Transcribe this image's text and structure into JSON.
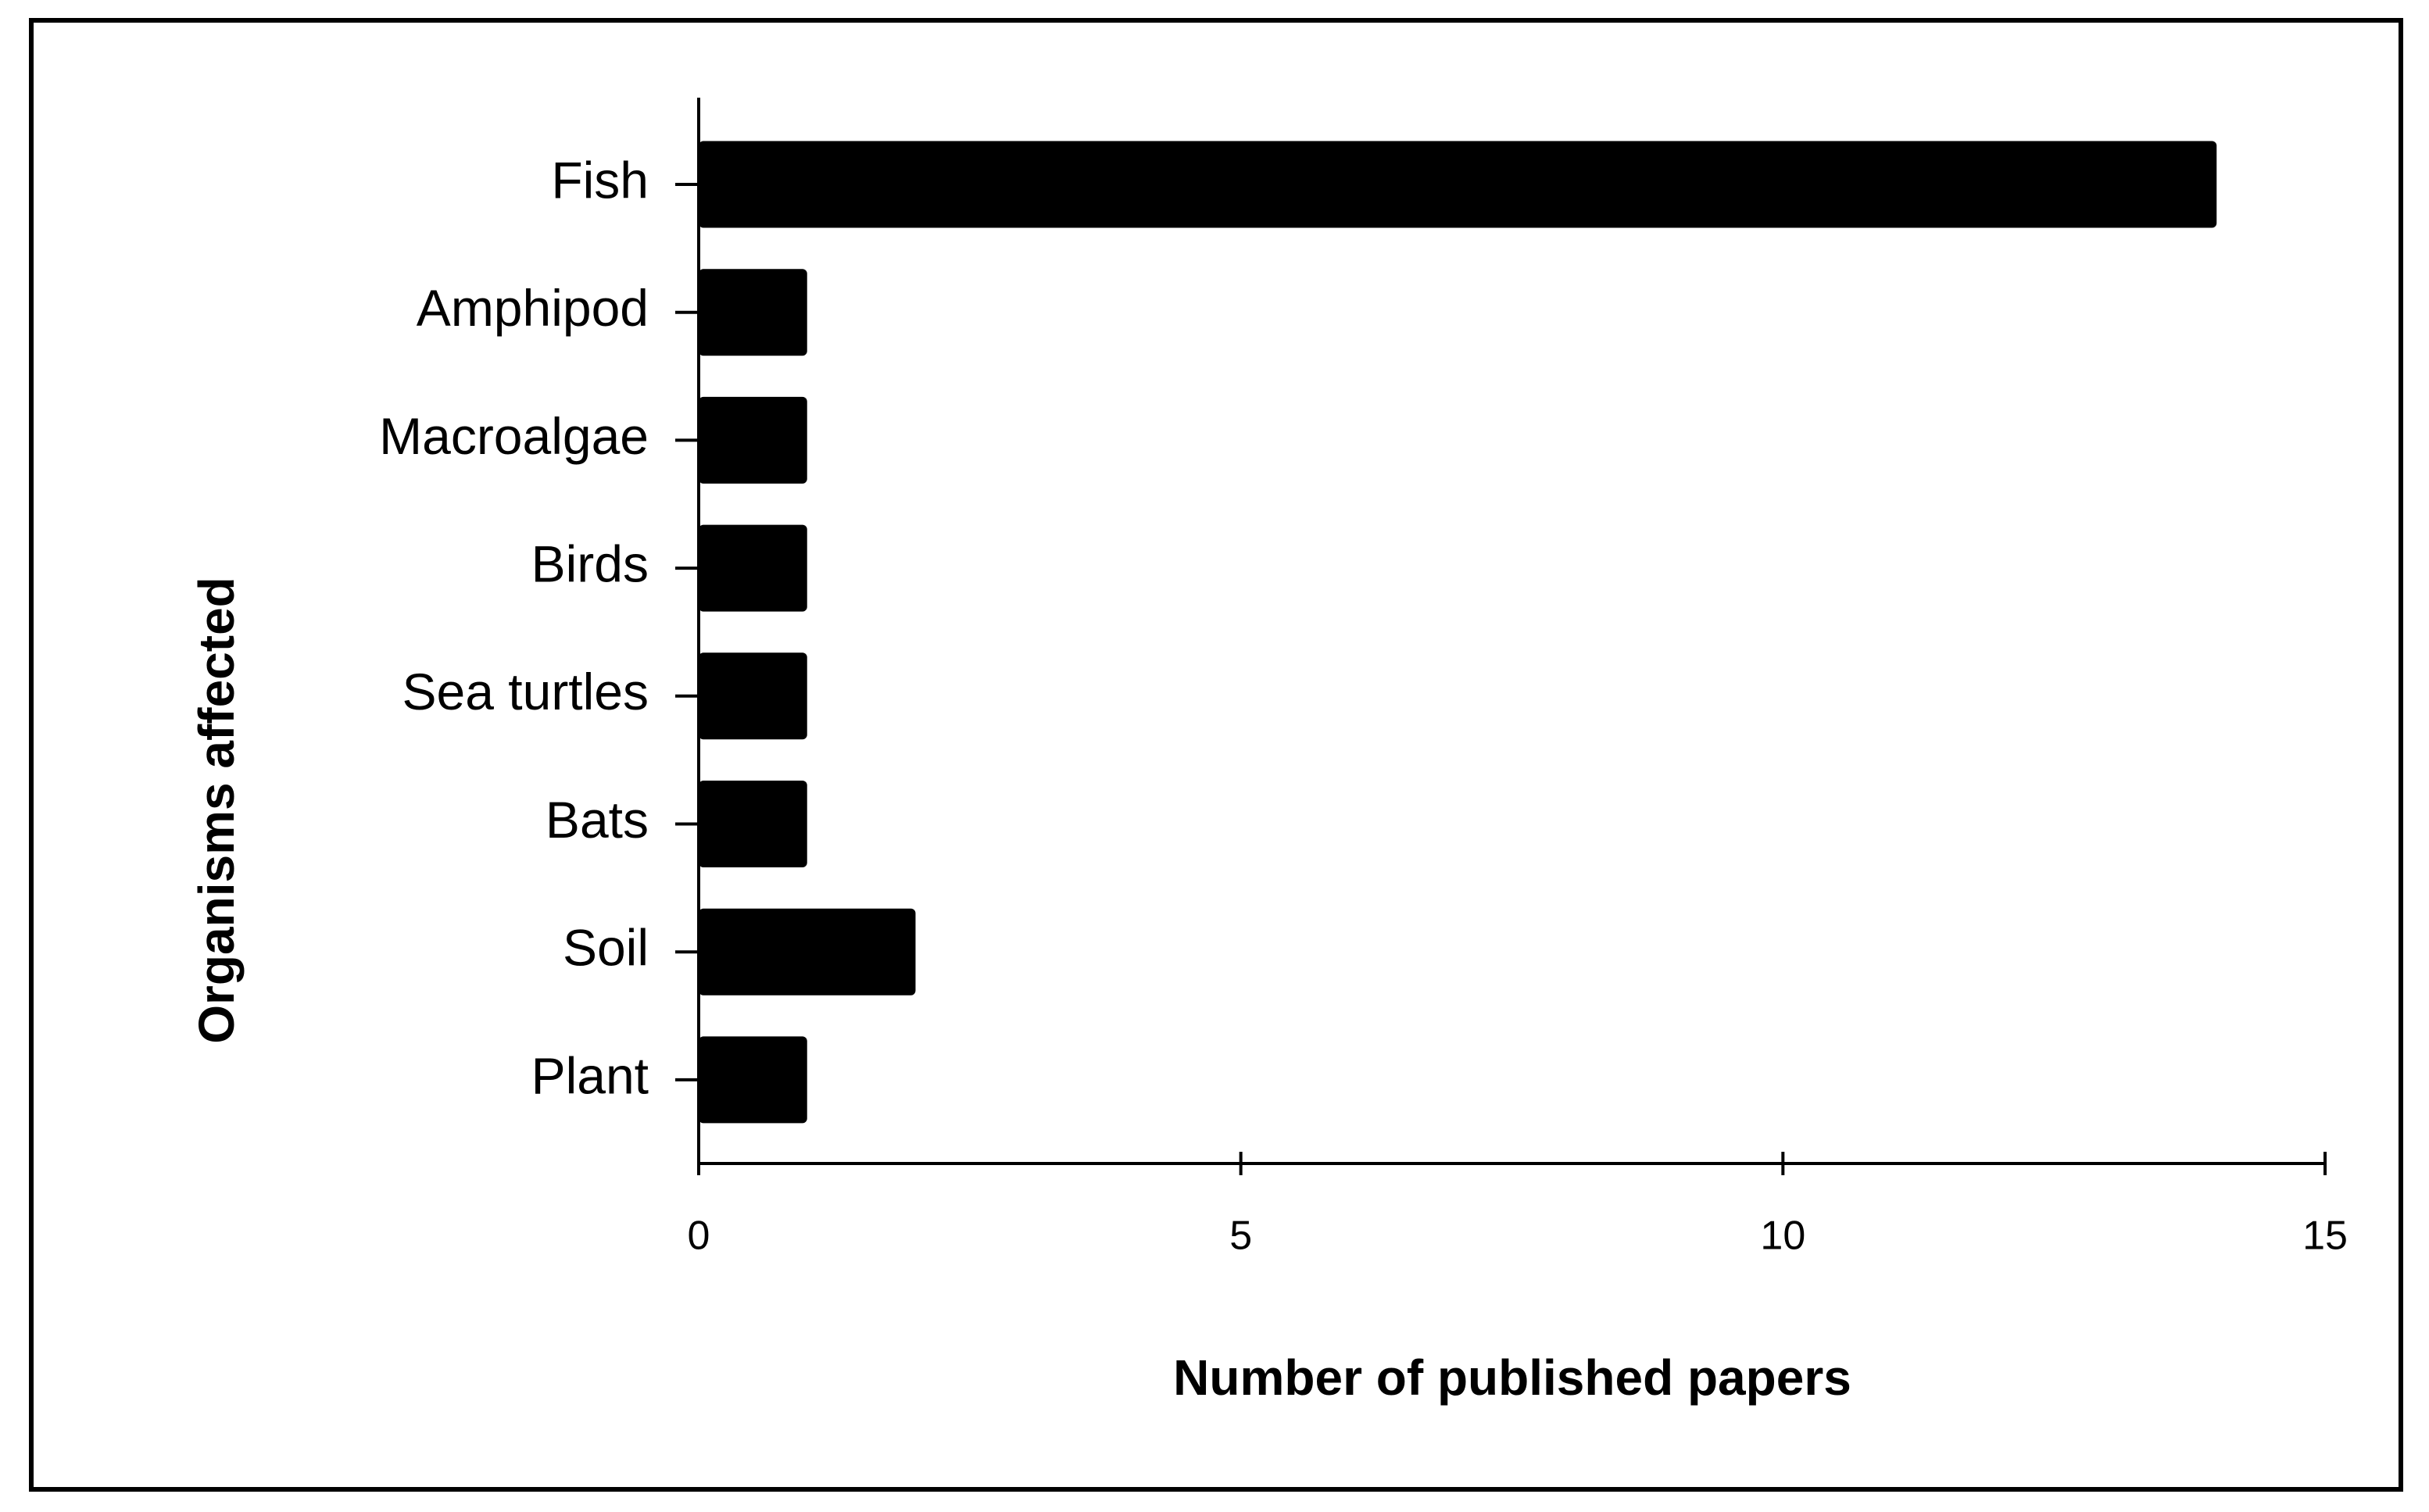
{
  "chart_data": {
    "type": "bar",
    "orientation": "horizontal",
    "x_label": "Number of published papers",
    "y_label": "Organisms affected",
    "categories": [
      "Fish",
      "Amphipod",
      "Macroalgae",
      "Birds",
      "Sea turtles",
      "Bats",
      "Soil",
      "Plant"
    ],
    "values": [
      14,
      1,
      1,
      1,
      1,
      1,
      2,
      1
    ],
    "color": "#000000",
    "xlim": [
      0,
      15
    ],
    "xticks": [
      0,
      5,
      10,
      15
    ],
    "grid": false
  }
}
